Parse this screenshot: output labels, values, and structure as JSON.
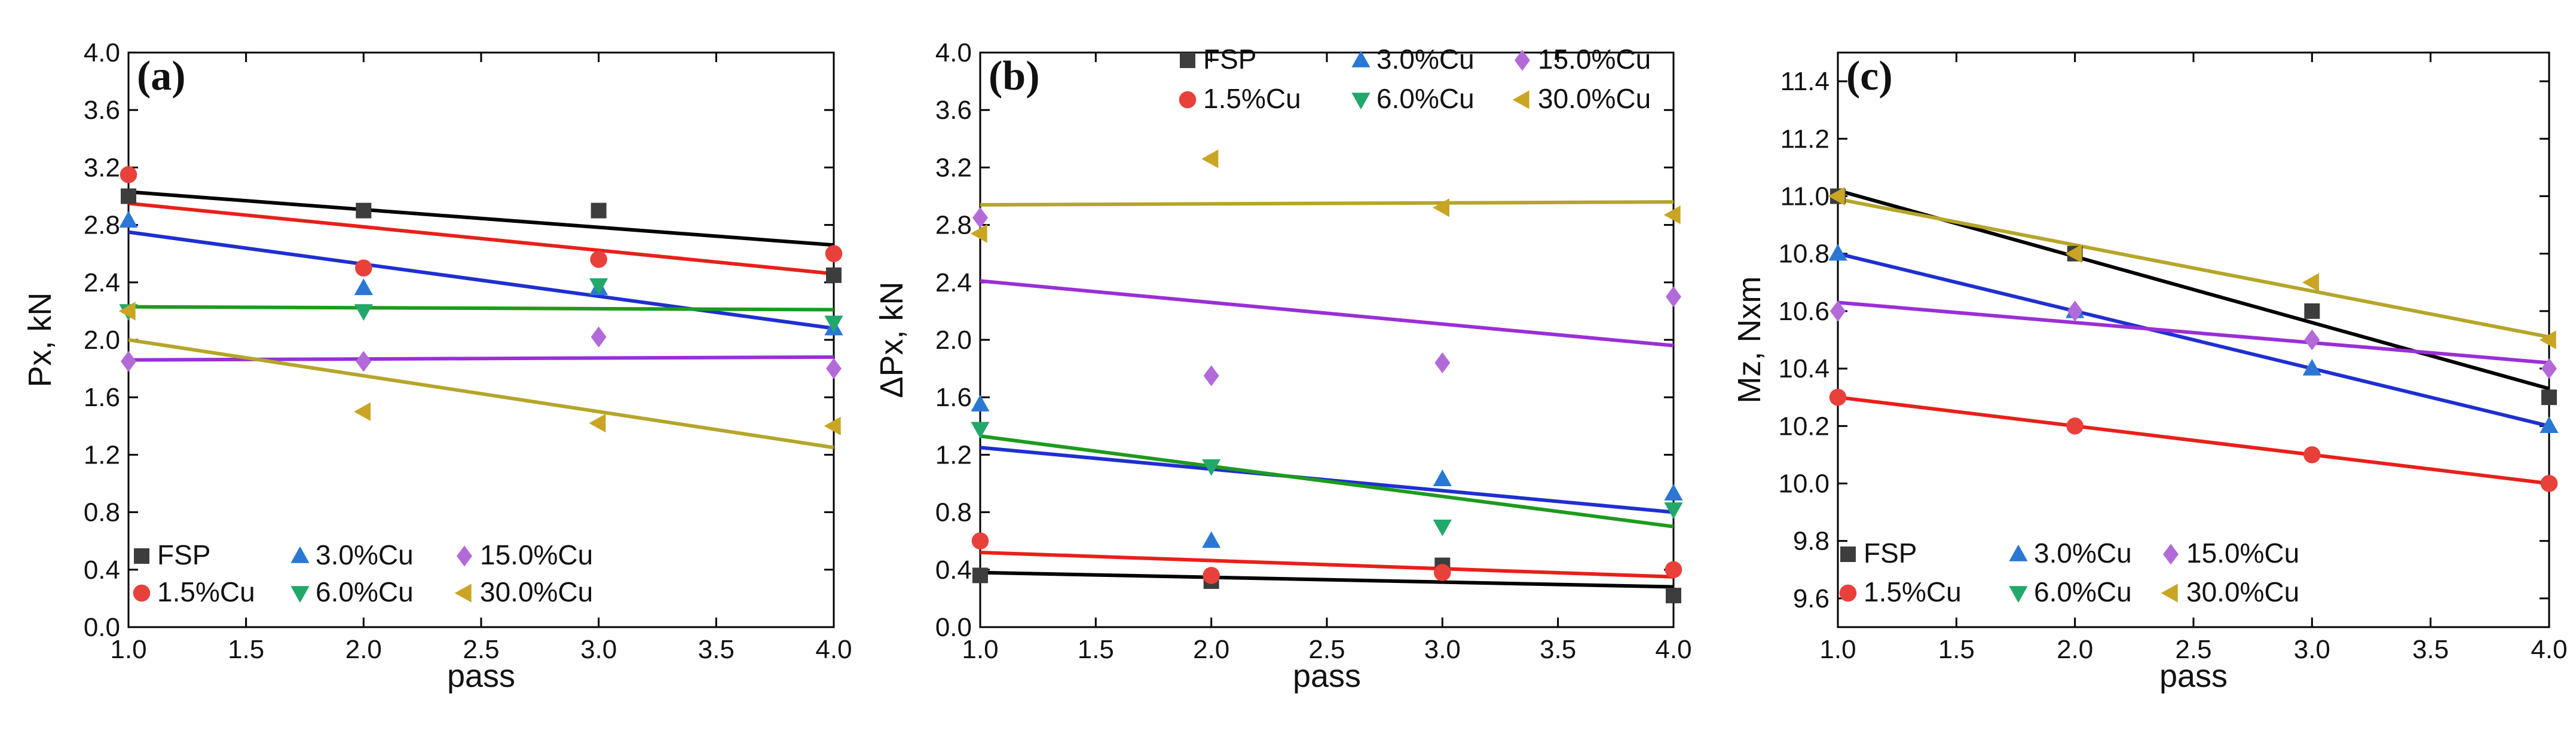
{
  "chart_data": [
    {
      "type": "scatter",
      "panel_label": "(a)",
      "xlabel": "pass",
      "ylabel": "Px, kN",
      "xlim": [
        1.0,
        4.0
      ],
      "ylim": [
        0.0,
        4.0
      ],
      "xticks": [
        "1.0",
        "1.5",
        "2.0",
        "2.5",
        "3.0",
        "3.5",
        "4.0"
      ],
      "yticks": [
        "0.0",
        "0.4",
        "0.8",
        "1.2",
        "1.6",
        "2.0",
        "2.4",
        "2.8",
        "3.2",
        "3.6",
        "4.0"
      ],
      "legend_position": "bottom-left",
      "legend_rows": [
        [
          "FSP",
          "3.0%Cu",
          "15.0%Cu"
        ],
        [
          "1.5%Cu",
          "6.0%Cu",
          "30.0%Cu"
        ]
      ],
      "series": [
        {
          "name": "FSP",
          "marker": "square",
          "color": "#3d3d3d",
          "line_color": "#000000",
          "x": [
            1,
            2,
            3,
            4
          ],
          "y": [
            3.0,
            2.9,
            2.9,
            2.45
          ],
          "fit": [
            3.03,
            2.66
          ]
        },
        {
          "name": "1.5%Cu",
          "marker": "circle",
          "color": "#e8413c",
          "line_color": "#e8201a",
          "x": [
            1,
            2,
            3,
            4
          ],
          "y": [
            3.15,
            2.5,
            2.56,
            2.6
          ],
          "fit": [
            2.95,
            2.46
          ]
        },
        {
          "name": "3.0%Cu",
          "marker": "triangle-up",
          "color": "#2a78d4",
          "line_color": "#1f2fd0",
          "x": [
            1,
            2,
            3,
            4
          ],
          "y": [
            2.83,
            2.36,
            2.36,
            2.08
          ],
          "fit": [
            2.75,
            2.08
          ]
        },
        {
          "name": "6.0%Cu",
          "marker": "triangle-down",
          "color": "#22a86a",
          "line_color": "#1e9a1e",
          "x": [
            1,
            2,
            3,
            4
          ],
          "y": [
            2.2,
            2.2,
            2.38,
            2.12
          ],
          "fit": [
            2.23,
            2.21
          ]
        },
        {
          "name": "15.0%Cu",
          "marker": "diamond",
          "color": "#b36ad9",
          "line_color": "#9a2fd6",
          "x": [
            1,
            2,
            3,
            4
          ],
          "y": [
            1.85,
            1.85,
            2.02,
            1.8
          ],
          "fit": [
            1.86,
            1.88
          ]
        },
        {
          "name": "30.0%Cu",
          "marker": "triangle-left",
          "color": "#c9a523",
          "line_color": "#b5a52a",
          "x": [
            1,
            2,
            3,
            4
          ],
          "y": [
            2.2,
            1.5,
            1.42,
            1.4
          ],
          "fit": [
            2.0,
            1.25
          ]
        }
      ]
    },
    {
      "type": "scatter",
      "panel_label": "(b)",
      "xlabel": "pass",
      "ylabel": "ΔPx, kN",
      "xlim": [
        1.0,
        4.0
      ],
      "ylim": [
        0.0,
        4.0
      ],
      "xticks": [
        "1.0",
        "1.5",
        "2.0",
        "2.5",
        "3.0",
        "3.5",
        "4.0"
      ],
      "yticks": [
        "0.0",
        "0.4",
        "0.8",
        "1.2",
        "1.6",
        "2.0",
        "2.4",
        "2.8",
        "3.2",
        "3.6",
        "4.0"
      ],
      "legend_position": "top-right",
      "legend_rows": [
        [
          "FSP",
          "3.0%Cu",
          "15.0%Cu"
        ],
        [
          "1.5%Cu",
          "6.0%Cu",
          "30.0%Cu"
        ]
      ],
      "series": [
        {
          "name": "FSP",
          "marker": "square",
          "color": "#3d3d3d",
          "line_color": "#000000",
          "x": [
            1,
            2,
            3,
            4
          ],
          "y": [
            0.36,
            0.32,
            0.43,
            0.22
          ],
          "fit": [
            0.38,
            0.28
          ]
        },
        {
          "name": "1.5%Cu",
          "marker": "circle",
          "color": "#e8413c",
          "line_color": "#e8201a",
          "x": [
            1,
            2,
            3,
            4
          ],
          "y": [
            0.6,
            0.36,
            0.38,
            0.4
          ],
          "fit": [
            0.52,
            0.35
          ]
        },
        {
          "name": "3.0%Cu",
          "marker": "triangle-up",
          "color": "#2a78d4",
          "line_color": "#1f2fd0",
          "x": [
            1,
            2,
            3,
            4
          ],
          "y": [
            1.55,
            0.6,
            1.03,
            0.93
          ],
          "fit": [
            1.25,
            0.8
          ]
        },
        {
          "name": "6.0%Cu",
          "marker": "triangle-down",
          "color": "#22a86a",
          "line_color": "#1e9a1e",
          "x": [
            1,
            2,
            3,
            4
          ],
          "y": [
            1.38,
            1.12,
            0.7,
            0.82
          ],
          "fit": [
            1.33,
            0.7
          ]
        },
        {
          "name": "15.0%Cu",
          "marker": "diamond",
          "color": "#b36ad9",
          "line_color": "#9a2fd6",
          "x": [
            1,
            2,
            3,
            4
          ],
          "y": [
            2.85,
            1.75,
            1.84,
            2.3
          ],
          "fit": [
            2.41,
            1.96
          ]
        },
        {
          "name": "30.0%Cu",
          "marker": "triangle-left",
          "color": "#c9a523",
          "line_color": "#b5a52a",
          "x": [
            1,
            2,
            3,
            4
          ],
          "y": [
            2.74,
            3.26,
            2.92,
            2.87
          ],
          "fit": [
            2.94,
            2.96
          ]
        }
      ]
    },
    {
      "type": "scatter",
      "panel_label": "(c)",
      "xlabel": "pass",
      "ylabel": "Mz, Nxm",
      "xlim": [
        1.0,
        4.0
      ],
      "ylim": [
        9.5,
        11.5
      ],
      "xticks": [
        "1.0",
        "1.5",
        "2.0",
        "2.5",
        "3.0",
        "3.5",
        "4.0"
      ],
      "yticks": [
        "9.6",
        "9.8",
        "10.0",
        "10.2",
        "10.4",
        "10.6",
        "10.8",
        "11.0",
        "11.2",
        "11.4"
      ],
      "legend_position": "bottom-left",
      "legend_rows": [
        [
          "FSP",
          "3.0%Cu",
          "15.0%Cu"
        ],
        [
          "1.5%Cu",
          "6.0%Cu",
          "30.0%Cu"
        ]
      ],
      "series": [
        {
          "name": "FSP",
          "marker": "square",
          "color": "#3d3d3d",
          "line_color": "#000000",
          "x": [
            1,
            2,
            3,
            4
          ],
          "y": [
            11.0,
            10.8,
            10.6,
            10.3
          ],
          "fit": [
            11.02,
            10.33
          ]
        },
        {
          "name": "1.5%Cu",
          "marker": "circle",
          "color": "#e8413c",
          "line_color": "#e8201a",
          "x": [
            1,
            2,
            3,
            4
          ],
          "y": [
            10.3,
            10.2,
            10.1,
            10.0
          ],
          "fit": [
            10.3,
            10.0
          ]
        },
        {
          "name": "3.0%Cu",
          "marker": "triangle-up",
          "color": "#2a78d4",
          "line_color": "#1f2fd0",
          "x": [
            1,
            2,
            3,
            4
          ],
          "y": [
            10.8,
            10.6,
            10.4,
            10.2
          ],
          "fit": [
            10.8,
            10.2
          ]
        },
        {
          "name": "6.0%Cu",
          "marker": "triangle-down",
          "color": "#22a86a",
          "line_color": "#1e9a1e",
          "x": [],
          "y": [],
          "fit": null
        },
        {
          "name": "15.0%Cu",
          "marker": "diamond",
          "color": "#b36ad9",
          "line_color": "#9a2fd6",
          "x": [
            1,
            2,
            3,
            4
          ],
          "y": [
            10.6,
            10.6,
            10.5,
            10.4
          ],
          "fit": [
            10.63,
            10.42
          ]
        },
        {
          "name": "30.0%Cu",
          "marker": "triangle-left",
          "color": "#c9a523",
          "line_color": "#b5a52a",
          "x": [
            1,
            2,
            3,
            4
          ],
          "y": [
            11.0,
            10.8,
            10.7,
            10.5
          ],
          "fit": [
            10.99,
            10.51
          ]
        }
      ]
    }
  ]
}
